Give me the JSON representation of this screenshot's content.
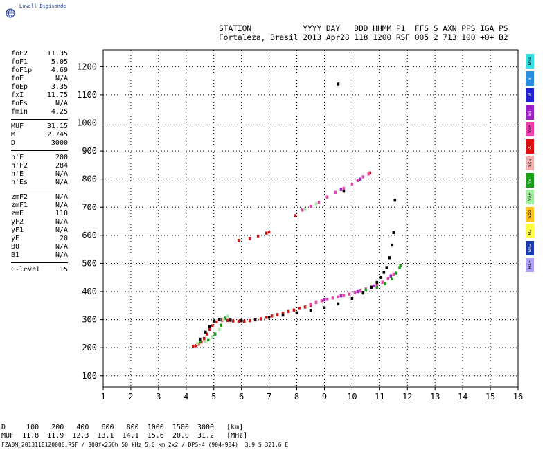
{
  "brand": {
    "name": "Lowell Digisonde",
    "icon": "globe-icon"
  },
  "header": {
    "line1": "STATION           YYYY DAY   DDD HHMM P1  FFS S AXN PPS IGA PS",
    "line2": "Fortaleza, Brasil 2013 Apr28 118 1200 RSF 005 2 713 100 +0+ B2"
  },
  "params": [
    {
      "name": "foF2",
      "value": "11.35"
    },
    {
      "name": "foF1",
      "value": "5.05"
    },
    {
      "name": "foF1p",
      "value": "4.69"
    },
    {
      "name": "foE",
      "value": "N/A"
    },
    {
      "name": "foEp",
      "value": "3.35"
    },
    {
      "name": "fxI",
      "value": "11.75"
    },
    {
      "name": "foEs",
      "value": "N/A"
    },
    {
      "name": "fmin",
      "value": "4.25"
    },
    {
      "sep": true
    },
    {
      "name": "MUF",
      "value": "31.15"
    },
    {
      "name": "M",
      "value": "2.745"
    },
    {
      "name": "D",
      "value": "3000"
    },
    {
      "sep": true
    },
    {
      "name": "h'F",
      "value": "200"
    },
    {
      "name": "h'F2",
      "value": "284"
    },
    {
      "name": "h'E",
      "value": "N/A"
    },
    {
      "name": "h'Es",
      "value": "N/A"
    },
    {
      "sep": true
    },
    {
      "name": "zmF2",
      "value": "N/A"
    },
    {
      "name": "zmF1",
      "value": "N/A"
    },
    {
      "name": "zmE",
      "value": "110"
    },
    {
      "name": "yF2",
      "value": "N/A"
    },
    {
      "name": "yF1",
      "value": "N/A"
    },
    {
      "name": "yE",
      "value": "20"
    },
    {
      "name": "B0",
      "value": "N/A"
    },
    {
      "name": "B1",
      "value": "N/A"
    },
    {
      "sep": true
    },
    {
      "name": "C-level",
      "value": "15"
    }
  ],
  "legend": [
    {
      "label": "Nne",
      "color": "#33e3e3"
    },
    {
      "label": "E",
      "color": "#2a8fe0"
    },
    {
      "label": "W",
      "color": "#1f1fd8"
    },
    {
      "label": "Vo-",
      "color": "#a020c8"
    },
    {
      "label": "Vo+",
      "color": "#f040b0"
    },
    {
      "label": "X-",
      "color": "#e01010"
    },
    {
      "label": "Ssw",
      "color": "#f5b0b0"
    },
    {
      "label": "Vx-",
      "color": "#18a018"
    },
    {
      "label": "Vx+",
      "color": "#a0f0a0"
    },
    {
      "label": "Sse",
      "color": "#ffc020"
    },
    {
      "label": "Hi-",
      "color": "#ffff40"
    },
    {
      "label": "Nnw",
      "color": "#1838b0"
    },
    {
      "label": "Hi+",
      "color": "#b0a0ff"
    }
  ],
  "footer": {
    "d_line": "D     100   200   400   600   800  1000  1500  3000   [km]",
    "muf_line": "MUF  11.8  11.9  12.3  13.1  14.1  15.6  20.0  31.2   [MHz]",
    "file_line": "FZA0M_2013118120000.RSF / 300fx256h 50 kHz 5.0 km 2x2 / DPS-4 (904-904)  3.9 S 321.6 E"
  },
  "chart_data": {
    "type": "scatter",
    "xlim": [
      1,
      16
    ],
    "ylim": [
      60,
      1260
    ],
    "xticks": [
      1,
      2,
      3,
      4,
      5,
      6,
      7,
      8,
      9,
      10,
      11,
      12,
      13,
      14,
      15,
      16
    ],
    "yticks": [
      100,
      200,
      300,
      400,
      500,
      600,
      700,
      800,
      900,
      1000,
      1100,
      1200
    ],
    "grid": true,
    "series": [
      {
        "color": "#e01010",
        "points": [
          [
            4.25,
            205
          ],
          [
            4.35,
            207
          ],
          [
            4.45,
            212
          ],
          [
            4.55,
            220
          ],
          [
            4.65,
            232
          ],
          [
            4.75,
            248
          ],
          [
            4.85,
            265
          ],
          [
            4.95,
            278
          ],
          [
            5.1,
            292
          ],
          [
            5.3,
            298
          ],
          [
            5.5,
            297
          ],
          [
            5.7,
            295
          ],
          [
            5.9,
            294
          ],
          [
            6.1,
            294
          ],
          [
            6.3,
            296
          ],
          [
            6.5,
            299
          ],
          [
            6.7,
            303
          ],
          [
            6.9,
            308
          ],
          [
            7.1,
            313
          ],
          [
            7.3,
            318
          ],
          [
            7.5,
            323
          ],
          [
            7.7,
            329
          ],
          [
            7.9,
            334
          ],
          [
            8.1,
            340
          ],
          [
            8.3,
            345
          ],
          [
            8.5,
            351
          ],
          [
            5.9,
            582
          ],
          [
            6.3,
            588
          ],
          [
            6.6,
            596
          ],
          [
            6.9,
            608
          ],
          [
            7.0,
            612
          ],
          [
            7.95,
            670
          ],
          [
            10.65,
            822
          ]
        ]
      },
      {
        "color": "#f040b0",
        "points": [
          [
            8.5,
            355
          ],
          [
            8.7,
            361
          ],
          [
            8.9,
            367
          ],
          [
            9.1,
            372
          ],
          [
            9.3,
            377
          ],
          [
            9.5,
            381
          ],
          [
            9.7,
            386
          ],
          [
            9.9,
            391
          ],
          [
            10.1,
            396
          ],
          [
            10.3,
            402
          ],
          [
            10.5,
            409
          ],
          [
            10.7,
            416
          ],
          [
            10.9,
            424
          ],
          [
            11.1,
            433
          ],
          [
            11.3,
            446
          ],
          [
            11.5,
            462
          ],
          [
            8.2,
            690
          ],
          [
            8.5,
            703
          ],
          [
            8.8,
            717
          ],
          [
            9.1,
            736
          ],
          [
            9.4,
            753
          ],
          [
            9.7,
            767
          ],
          [
            10.0,
            782
          ],
          [
            10.2,
            795
          ],
          [
            10.4,
            808
          ],
          [
            10.6,
            818
          ]
        ]
      },
      {
        "color": "#a020c8",
        "points": [
          [
            9.0,
            370
          ],
          [
            9.6,
            385
          ],
          [
            10.2,
            400
          ],
          [
            10.8,
            420
          ],
          [
            11.4,
            455
          ],
          [
            9.6,
            763
          ],
          [
            10.3,
            800
          ]
        ]
      },
      {
        "color": "#18a018",
        "points": [
          [
            4.5,
            220
          ],
          [
            4.8,
            228
          ],
          [
            5.05,
            248
          ],
          [
            5.25,
            280
          ],
          [
            5.4,
            305
          ],
          [
            10.5,
            405
          ],
          [
            10.9,
            415
          ],
          [
            11.2,
            427
          ],
          [
            11.45,
            445
          ],
          [
            11.6,
            465
          ],
          [
            11.72,
            485
          ],
          [
            11.75,
            492
          ]
        ]
      },
      {
        "color": "#a0f0a0",
        "points": [
          [
            4.4,
            214
          ],
          [
            4.7,
            222
          ],
          [
            4.95,
            238
          ],
          [
            5.2,
            265
          ],
          [
            5.35,
            300
          ],
          [
            5.5,
            312
          ],
          [
            8.3,
            692
          ],
          [
            8.7,
            712
          ]
        ]
      },
      {
        "color": "#000000",
        "points": [
          [
            4.5,
            230
          ],
          [
            4.7,
            255
          ],
          [
            4.85,
            275
          ],
          [
            5.0,
            295
          ],
          [
            5.2,
            300
          ],
          [
            5.6,
            298
          ],
          [
            6.0,
            296
          ],
          [
            6.5,
            300
          ],
          [
            7.0,
            308
          ],
          [
            7.5,
            316
          ],
          [
            8.0,
            324
          ],
          [
            8.5,
            333
          ],
          [
            9.0,
            342
          ],
          [
            9.5,
            356
          ],
          [
            10.0,
            375
          ],
          [
            10.4,
            395
          ],
          [
            10.7,
            415
          ],
          [
            10.9,
            432
          ],
          [
            11.05,
            450
          ],
          [
            11.15,
            468
          ],
          [
            11.25,
            485
          ],
          [
            11.35,
            520
          ],
          [
            11.45,
            565
          ],
          [
            11.5,
            610
          ],
          [
            11.55,
            725
          ],
          [
            9.5,
            1138
          ],
          [
            9.7,
            757
          ]
        ]
      }
    ]
  }
}
